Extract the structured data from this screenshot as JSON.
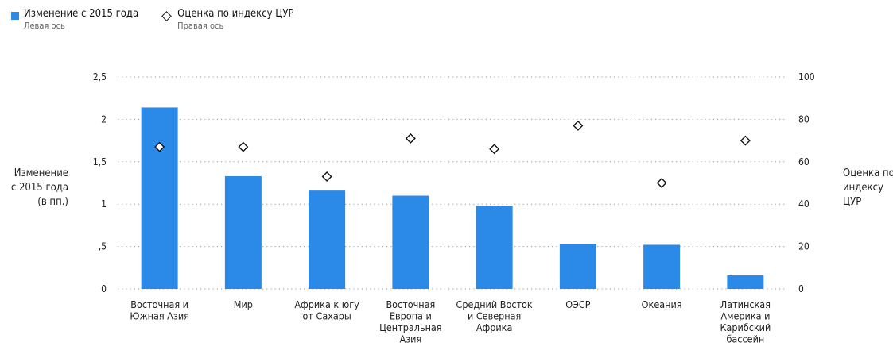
{
  "legend": {
    "bar": {
      "title": "Изменение с 2015 года",
      "sub": "Левая ось",
      "color": "#2b8ae8"
    },
    "diamond": {
      "title": "Оценка по индексу ЦУР",
      "sub": "Правая ось"
    }
  },
  "axis_labels": {
    "left": [
      "Изменение",
      "с 2015 года",
      "(в пп.)"
    ],
    "right": [
      "Оценка по",
      "индексу",
      "ЦУР"
    ]
  },
  "chart_data": {
    "type": "bar",
    "categories": [
      [
        "Восточная и",
        "Южная Азия"
      ],
      [
        "Мир"
      ],
      [
        "Африка к югу",
        "от Сахары"
      ],
      [
        "Восточная",
        "Европа и",
        "Центральная",
        "Азия"
      ],
      [
        "Средний Восток",
        "и Северная",
        "Африка"
      ],
      [
        "ОЭСР"
      ],
      [
        "Океания"
      ],
      [
        "Латинская",
        "Америка и",
        "Карибский",
        "бассейн"
      ]
    ],
    "series": [
      {
        "name": "Изменение с 2015 года",
        "axis": "left",
        "type": "bar",
        "color": "#2b8ae8",
        "values": [
          2.14,
          1.33,
          1.16,
          1.1,
          0.98,
          0.53,
          0.52,
          0.16
        ]
      },
      {
        "name": "Оценка по индексу ЦУР",
        "axis": "right",
        "type": "scatter",
        "marker": "diamond",
        "values": [
          67,
          67,
          53,
          71,
          66,
          77,
          50,
          70
        ]
      }
    ],
    "y_left": {
      "ticks": [
        "0",
        ",5",
        "1",
        "1,5",
        "2",
        "2,5"
      ],
      "tick_values": [
        0,
        0.5,
        1,
        1.5,
        2,
        2.5
      ],
      "lim": [
        0,
        2.5
      ]
    },
    "y_right": {
      "ticks": [
        "0",
        "20",
        "40",
        "60",
        "80",
        "100"
      ],
      "tick_values": [
        0,
        20,
        40,
        60,
        80,
        100
      ],
      "lim": [
        0,
        100
      ]
    },
    "grid": "dotted-horizontal"
  }
}
